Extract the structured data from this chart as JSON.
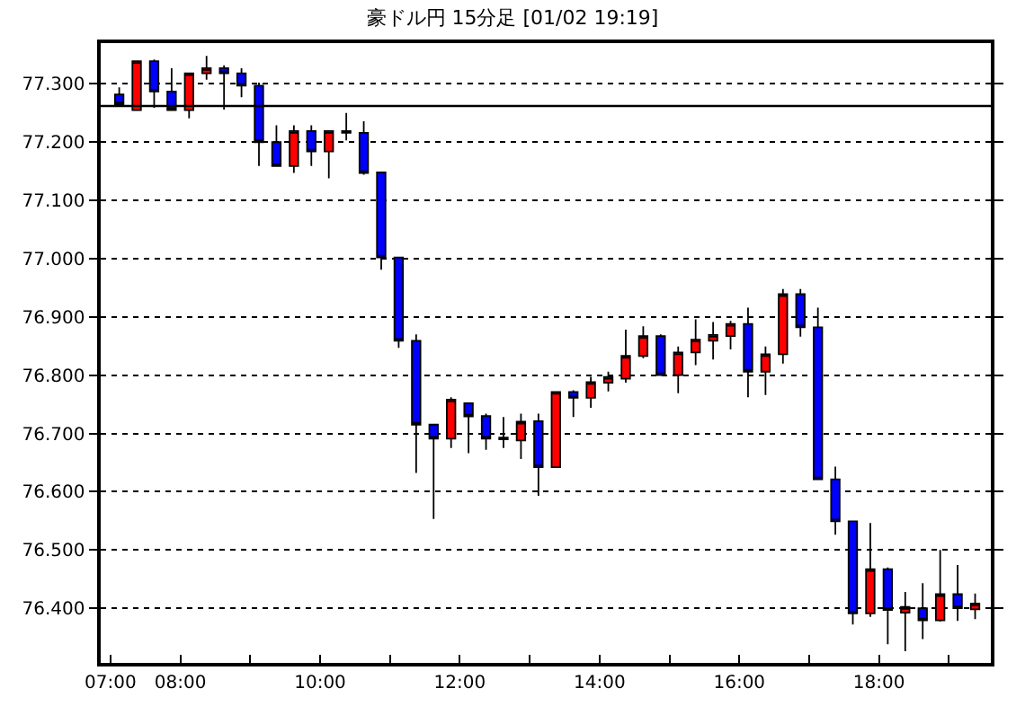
{
  "chart_data": {
    "type": "candlestick",
    "title": "豪ドル円 15分足 [01/02 19:19]",
    "x": [
      7.125,
      7.375,
      7.625,
      7.875,
      8.125,
      8.375,
      8.625,
      8.875,
      9.125,
      9.375,
      9.625,
      9.875,
      10.125,
      10.375,
      10.625,
      10.875,
      11.125,
      11.375,
      11.625,
      11.875,
      12.125,
      12.375,
      12.625,
      12.875,
      13.125,
      13.375,
      13.625,
      13.875,
      14.125,
      14.375,
      14.625,
      14.875,
      15.125,
      15.375,
      15.625,
      15.875,
      16.125,
      16.375,
      16.625,
      16.875,
      17.125,
      17.375,
      17.625,
      17.875,
      18.125,
      18.375,
      18.625,
      18.875,
      19.125,
      19.375
    ],
    "ohlc": [
      [
        77.282,
        77.294,
        77.265,
        77.265
      ],
      [
        77.255,
        77.339,
        77.255,
        77.339
      ],
      [
        77.339,
        77.342,
        77.259,
        77.287
      ],
      [
        77.287,
        77.327,
        77.255,
        77.255
      ],
      [
        77.255,
        77.318,
        77.241,
        77.318
      ],
      [
        77.318,
        77.348,
        77.307,
        77.327
      ],
      [
        77.327,
        77.332,
        77.256,
        77.318
      ],
      [
        77.318,
        77.327,
        77.277,
        77.297
      ],
      [
        77.297,
        77.302,
        77.159,
        77.2
      ],
      [
        77.2,
        77.229,
        77.159,
        77.159
      ],
      [
        77.159,
        77.229,
        77.147,
        77.219
      ],
      [
        77.219,
        77.229,
        77.159,
        77.184
      ],
      [
        77.184,
        77.219,
        77.138,
        77.219
      ],
      [
        77.216,
        77.25,
        77.203,
        77.219
      ],
      [
        77.216,
        77.236,
        77.144,
        77.147
      ],
      [
        77.148,
        77.148,
        76.981,
        77.002
      ],
      [
        77.002,
        77.002,
        76.847,
        76.859
      ],
      [
        76.859,
        76.87,
        76.632,
        76.715
      ],
      [
        76.715,
        76.715,
        76.553,
        76.691
      ],
      [
        76.691,
        76.762,
        76.675,
        76.758
      ],
      [
        76.752,
        76.752,
        76.666,
        76.729
      ],
      [
        76.73,
        76.734,
        76.672,
        76.691
      ],
      [
        76.693,
        76.728,
        76.675,
        76.69
      ],
      [
        76.688,
        76.734,
        76.656,
        76.72
      ],
      [
        76.721,
        76.734,
        76.593,
        76.642
      ],
      [
        76.642,
        76.771,
        76.642,
        76.771
      ],
      [
        76.771,
        76.774,
        76.728,
        76.761
      ],
      [
        76.761,
        76.797,
        76.744,
        76.788
      ],
      [
        76.787,
        76.806,
        76.772,
        76.797
      ],
      [
        76.794,
        76.878,
        76.787,
        76.833
      ],
      [
        76.833,
        76.884,
        76.829,
        76.867
      ],
      [
        76.867,
        76.87,
        76.8,
        76.8
      ],
      [
        76.8,
        76.849,
        76.769,
        76.839
      ],
      [
        76.839,
        76.896,
        76.817,
        76.861
      ],
      [
        76.859,
        76.891,
        76.827,
        76.869
      ],
      [
        76.867,
        76.893,
        76.844,
        76.888
      ],
      [
        76.888,
        76.916,
        76.762,
        76.806
      ],
      [
        76.806,
        76.849,
        76.766,
        76.836
      ],
      [
        76.836,
        76.948,
        76.82,
        76.939
      ],
      [
        76.939,
        76.948,
        76.866,
        76.882
      ],
      [
        76.882,
        76.916,
        76.621,
        76.621
      ],
      [
        76.621,
        76.643,
        76.526,
        76.549
      ],
      [
        76.549,
        76.549,
        76.372,
        76.391
      ],
      [
        76.391,
        76.546,
        76.385,
        76.467
      ],
      [
        76.467,
        76.47,
        76.338,
        76.397
      ],
      [
        76.392,
        76.428,
        76.326,
        76.402
      ],
      [
        76.4,
        76.443,
        76.347,
        76.379
      ],
      [
        76.379,
        76.5,
        76.377,
        76.424
      ],
      [
        76.424,
        76.474,
        76.378,
        76.4
      ],
      [
        76.398,
        76.425,
        76.381,
        76.408
      ]
    ],
    "colors": [
      "#0000ff",
      "#ff0000",
      "#0000ff",
      "#0000ff",
      "#ff0000",
      "#ff0000",
      "#0000ff",
      "#0000ff",
      "#0000ff",
      "#0000ff",
      "#ff0000",
      "#0000ff",
      "#ff0000",
      "#000000",
      "#0000ff",
      "#0000ff",
      "#0000ff",
      "#0000ff",
      "#0000ff",
      "#ff0000",
      "#0000ff",
      "#0000ff",
      "#000000",
      "#ff0000",
      "#0000ff",
      "#ff0000",
      "#0000ff",
      "#ff0000",
      "#ff0000",
      "#ff0000",
      "#ff0000",
      "#0000ff",
      "#ff0000",
      "#ff0000",
      "#ff0000",
      "#ff0000",
      "#0000ff",
      "#ff0000",
      "#ff0000",
      "#0000ff",
      "#0000ff",
      "#0000ff",
      "#0000ff",
      "#ff0000",
      "#0000ff",
      "#ff0000",
      "#0000ff",
      "#ff0000",
      "#0000ff",
      "#ff0000"
    ],
    "xlim": [
      6.86,
      19.6
    ],
    "xticks": [
      {
        "value": 7,
        "label": "07:00"
      },
      {
        "value": 8,
        "label": "08:00"
      },
      {
        "value": 9,
        "label": null
      },
      {
        "value": 10,
        "label": "10:00"
      },
      {
        "value": 11,
        "label": null
      },
      {
        "value": 12,
        "label": "12:00"
      },
      {
        "value": 13,
        "label": null
      },
      {
        "value": 14,
        "label": "14:00"
      },
      {
        "value": 15,
        "label": null
      },
      {
        "value": 16,
        "label": "16:00"
      },
      {
        "value": 17,
        "label": null
      },
      {
        "value": 18,
        "label": "18:00"
      },
      {
        "value": 19,
        "label": null
      }
    ],
    "ylim": [
      76.306,
      77.37
    ],
    "yticks": [
      {
        "value": 76.4,
        "label": "76.400"
      },
      {
        "value": 76.5,
        "label": "76.500"
      },
      {
        "value": 76.6,
        "label": "76.600"
      },
      {
        "value": 76.7,
        "label": "76.700"
      },
      {
        "value": 76.8,
        "label": "76.800"
      },
      {
        "value": 76.9,
        "label": "76.900"
      },
      {
        "value": 77.0,
        "label": "77.000"
      },
      {
        "value": 77.1,
        "label": "77.100"
      },
      {
        "value": 77.2,
        "label": "77.200"
      },
      {
        "value": 77.3,
        "label": "77.300"
      }
    ],
    "grid": "y",
    "ref_lines": [
      {
        "axis": "y",
        "value": 77.262,
        "color": "#000000",
        "line_style": "solid"
      }
    ]
  }
}
